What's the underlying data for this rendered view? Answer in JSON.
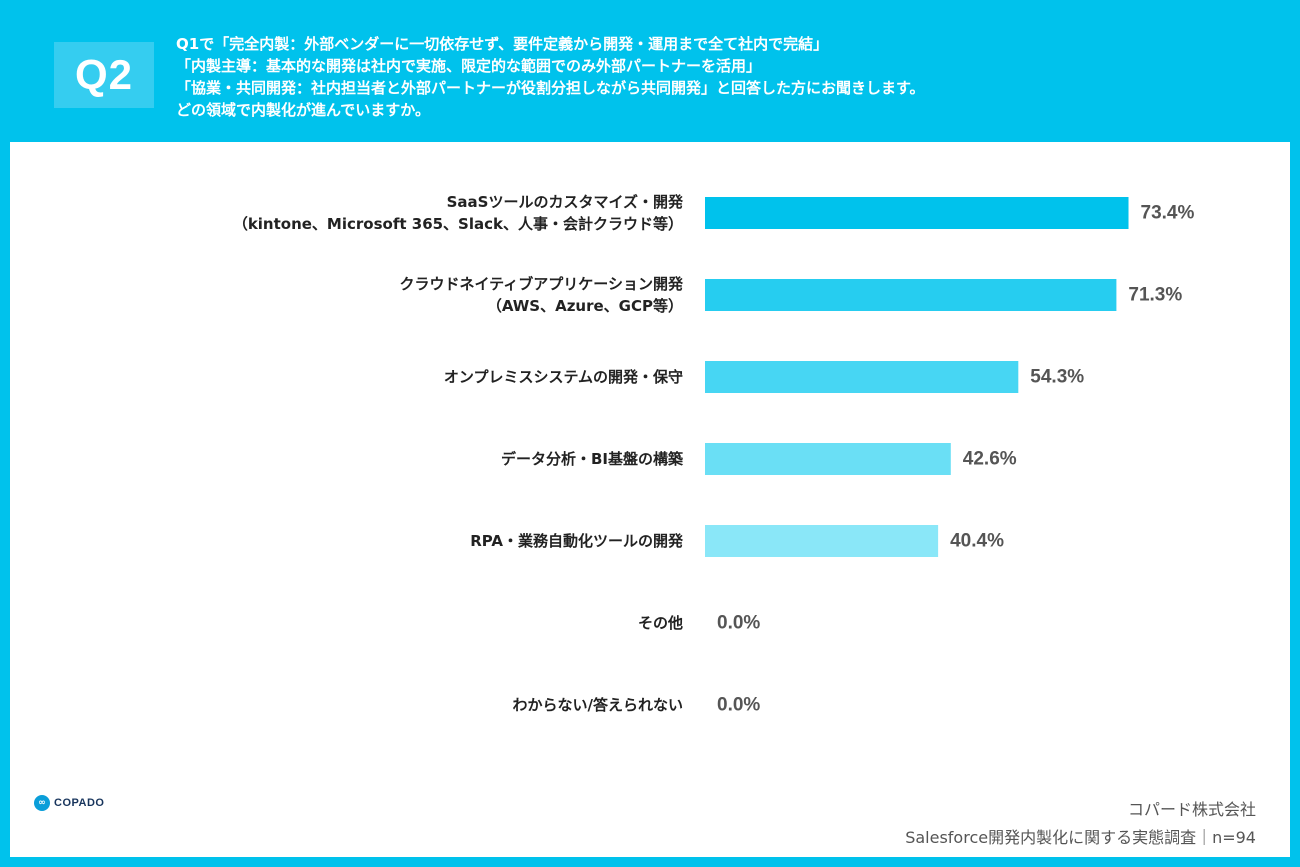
{
  "header": {
    "badge": "Q2",
    "question_lines": [
      "Q1で「完全内製：外部ベンダーに一切依存せず、要件定義から開発・運用まで全て社内で完結」",
      "「内製主導：基本的な開発は社内で実施、限定的な範囲でのみ外部パートナーを活用」",
      "「協業・共同開発：社内担当者と外部パートナーが役割分担しながら共同開発」と回答した方にお聞きします。",
      "どの領域で内製化が進んでいますか。"
    ]
  },
  "chart_data": {
    "type": "bar",
    "orientation": "horizontal",
    "categories": [
      [
        "SaaSツールのカスタマイズ・開発",
        "（kintone、Microsoft 365、Slack、人事・会計クラウド等）"
      ],
      [
        "クラウドネイティブアプリケーション開発",
        "（AWS、Azure、GCP等）"
      ],
      [
        "オンプレミスシステムの開発・保守"
      ],
      [
        "データ分析・BI基盤の構築"
      ],
      [
        "RPA・業務自動化ツールの開発"
      ],
      [
        "その他"
      ],
      [
        "わからない/答えられない"
      ]
    ],
    "values": [
      73.4,
      71.3,
      54.3,
      42.6,
      40.4,
      0.0,
      0.0
    ],
    "value_labels": [
      "73.4%",
      "71.3%",
      "54.3%",
      "42.6%",
      "40.4%",
      "0.0%",
      "0.0%"
    ],
    "bar_colors": [
      "#00c2ec",
      "#26cdf0",
      "#47d6f3",
      "#6adff5",
      "#8ae7f8",
      "#aeeffa",
      "#c8f4fb"
    ],
    "xlim": [
      0,
      100
    ],
    "unit": "%"
  },
  "brand": {
    "logo_text": "COPADO",
    "logo_mark": "∞"
  },
  "footer": {
    "company": "コパード株式会社",
    "survey": "Salesforce開発内製化に関する実態調査｜n=94"
  }
}
